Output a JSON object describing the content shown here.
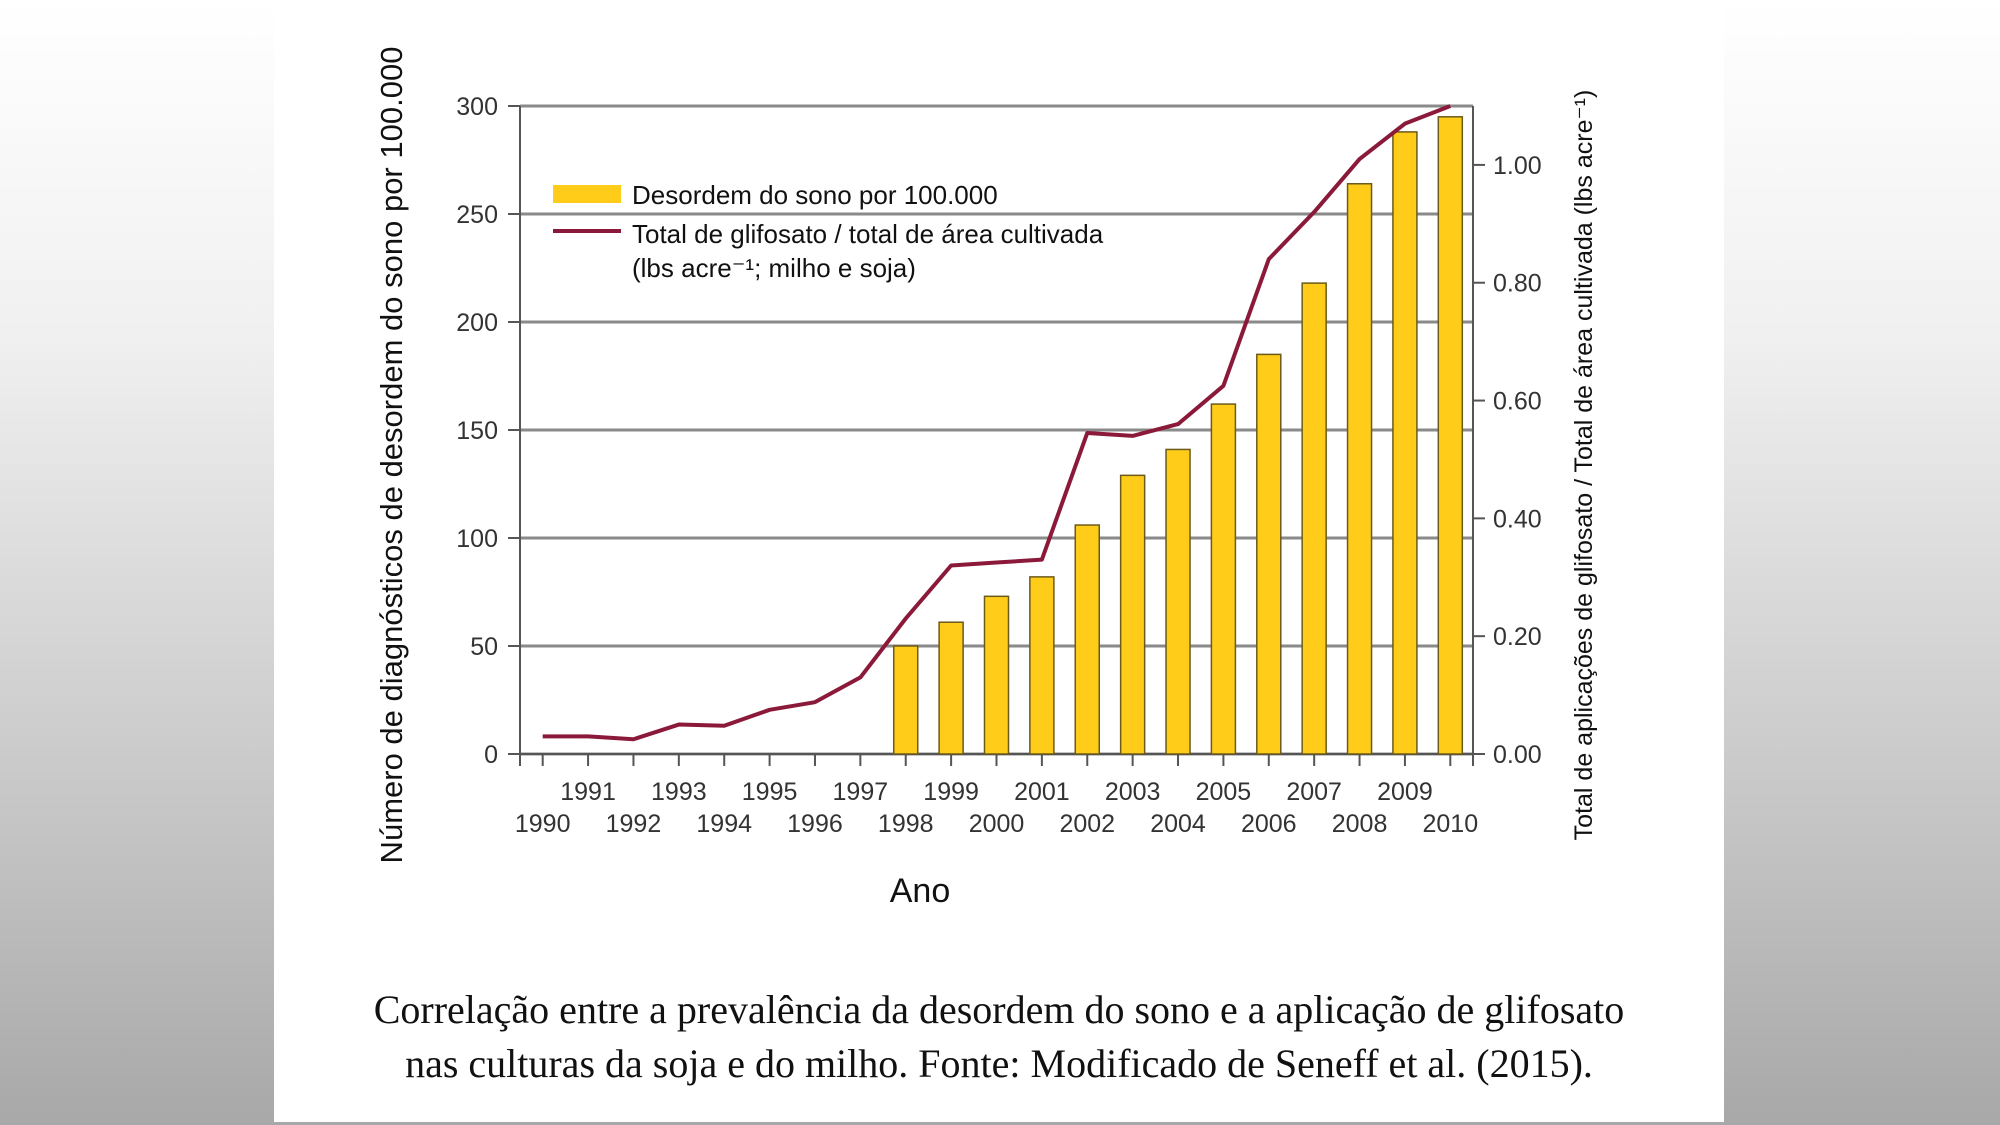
{
  "chart_data": {
    "type": "bar+line",
    "xlabel": "Ano",
    "ylabel": "Número de diagnósticos de desordem do sono por 100.000",
    "y2label": "Total de aplicações de glifosato / Total de área cultivada (lbs acre⁻¹)",
    "ylim": [
      0,
      300
    ],
    "y2lim": [
      0,
      1.1
    ],
    "yticks": [
      "0",
      "50",
      "100",
      "150",
      "200",
      "250",
      "300"
    ],
    "y2ticks": [
      "0.00",
      "0.20",
      "0.40",
      "0.60",
      "0.80",
      "1.00"
    ],
    "grid": true,
    "legend_position": "top-left",
    "years": [
      1990,
      1991,
      1992,
      1993,
      1994,
      1995,
      1996,
      1997,
      1998,
      1999,
      2000,
      2001,
      2002,
      2003,
      2004,
      2005,
      2006,
      2007,
      2008,
      2009,
      2010
    ],
    "series": [
      {
        "name": "Desordem do sono por 100.000",
        "type": "bar",
        "axis": "left",
        "color": "#FFCC1A",
        "x": [
          1998,
          1999,
          2000,
          2001,
          2002,
          2003,
          2004,
          2005,
          2006,
          2007,
          2008,
          2009,
          2010
        ],
        "values": [
          50,
          61,
          73,
          82,
          106,
          129,
          141,
          162,
          185,
          218,
          264,
          288,
          295
        ]
      },
      {
        "name": "Total de glifosato / total de área cultivada",
        "name_line2": "(lbs acre⁻¹; milho e soja)",
        "type": "line",
        "axis": "right",
        "color": "#8B1A3A",
        "x": [
          1990,
          1991,
          1992,
          1993,
          1994,
          1995,
          1996,
          1997,
          1998,
          1999,
          2000,
          2001,
          2002,
          2003,
          2004,
          2005,
          2006,
          2007,
          2008,
          2009,
          2010
        ],
        "values": [
          0.03,
          0.03,
          0.025,
          0.05,
          0.048,
          0.075,
          0.088,
          0.13,
          0.23,
          0.32,
          0.325,
          0.33,
          0.545,
          0.54,
          0.56,
          0.625,
          0.84,
          0.92,
          1.01,
          1.07,
          1.1
        ]
      }
    ]
  },
  "caption": {
    "line1": "Correlação entre a prevalência da desordem do sono e a aplicação de glifosato",
    "line2": "nas culturas da soja e do milho. Fonte: Modificado de Seneff et al. (2015)."
  }
}
